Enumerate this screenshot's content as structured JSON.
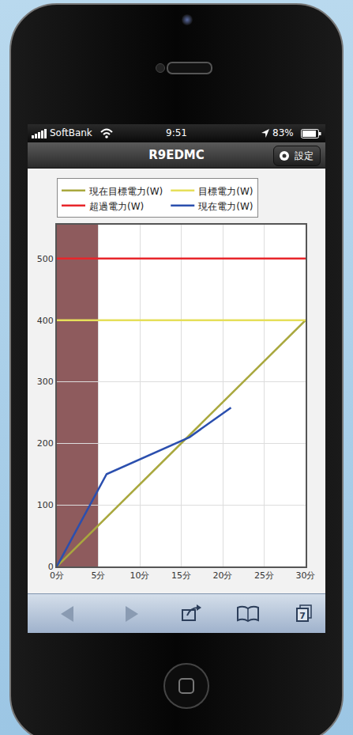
{
  "status_bar": {
    "carrier": "SoftBank",
    "time": "9:51",
    "battery": "83%"
  },
  "nav_bar": {
    "title": "R9EDMC",
    "button": "設定"
  },
  "toolbar": {
    "tabs": 7
  },
  "chart_data": {
    "type": "line",
    "xlim": [
      0,
      30
    ],
    "xticks": [
      {
        "value": 0,
        "label": "0分"
      },
      {
        "value": 5,
        "label": "5分"
      },
      {
        "value": 10,
        "label": "10分"
      },
      {
        "value": 15,
        "label": "15分"
      },
      {
        "value": 20,
        "label": "20分"
      },
      {
        "value": 25,
        "label": "25分"
      },
      {
        "value": 30,
        "label": "30分"
      }
    ],
    "ylim": [
      0,
      555
    ],
    "yticks": [
      0,
      100,
      200,
      300,
      400,
      500
    ],
    "grid": true,
    "legend": "top",
    "series": [
      {
        "name": "現在目標電力(W)",
        "color": "#a9a83e",
        "x": [
          0,
          30
        ],
        "values": [
          0,
          400
        ]
      },
      {
        "name": "目標電力(W)",
        "color": "#e6df5a",
        "x": [
          0,
          30
        ],
        "values": [
          400,
          400
        ]
      },
      {
        "name": "超過電力(W)",
        "color": "#e8262b",
        "x": [
          0,
          30
        ],
        "values": [
          500,
          500
        ]
      },
      {
        "name": "現在電力(W)",
        "color": "#2b4fae",
        "x": [
          0,
          6,
          16,
          21
        ],
        "values": [
          0,
          150,
          210,
          258
        ]
      }
    ],
    "band": {
      "x": [
        0,
        5
      ],
      "color": "#8e5b5d"
    }
  }
}
